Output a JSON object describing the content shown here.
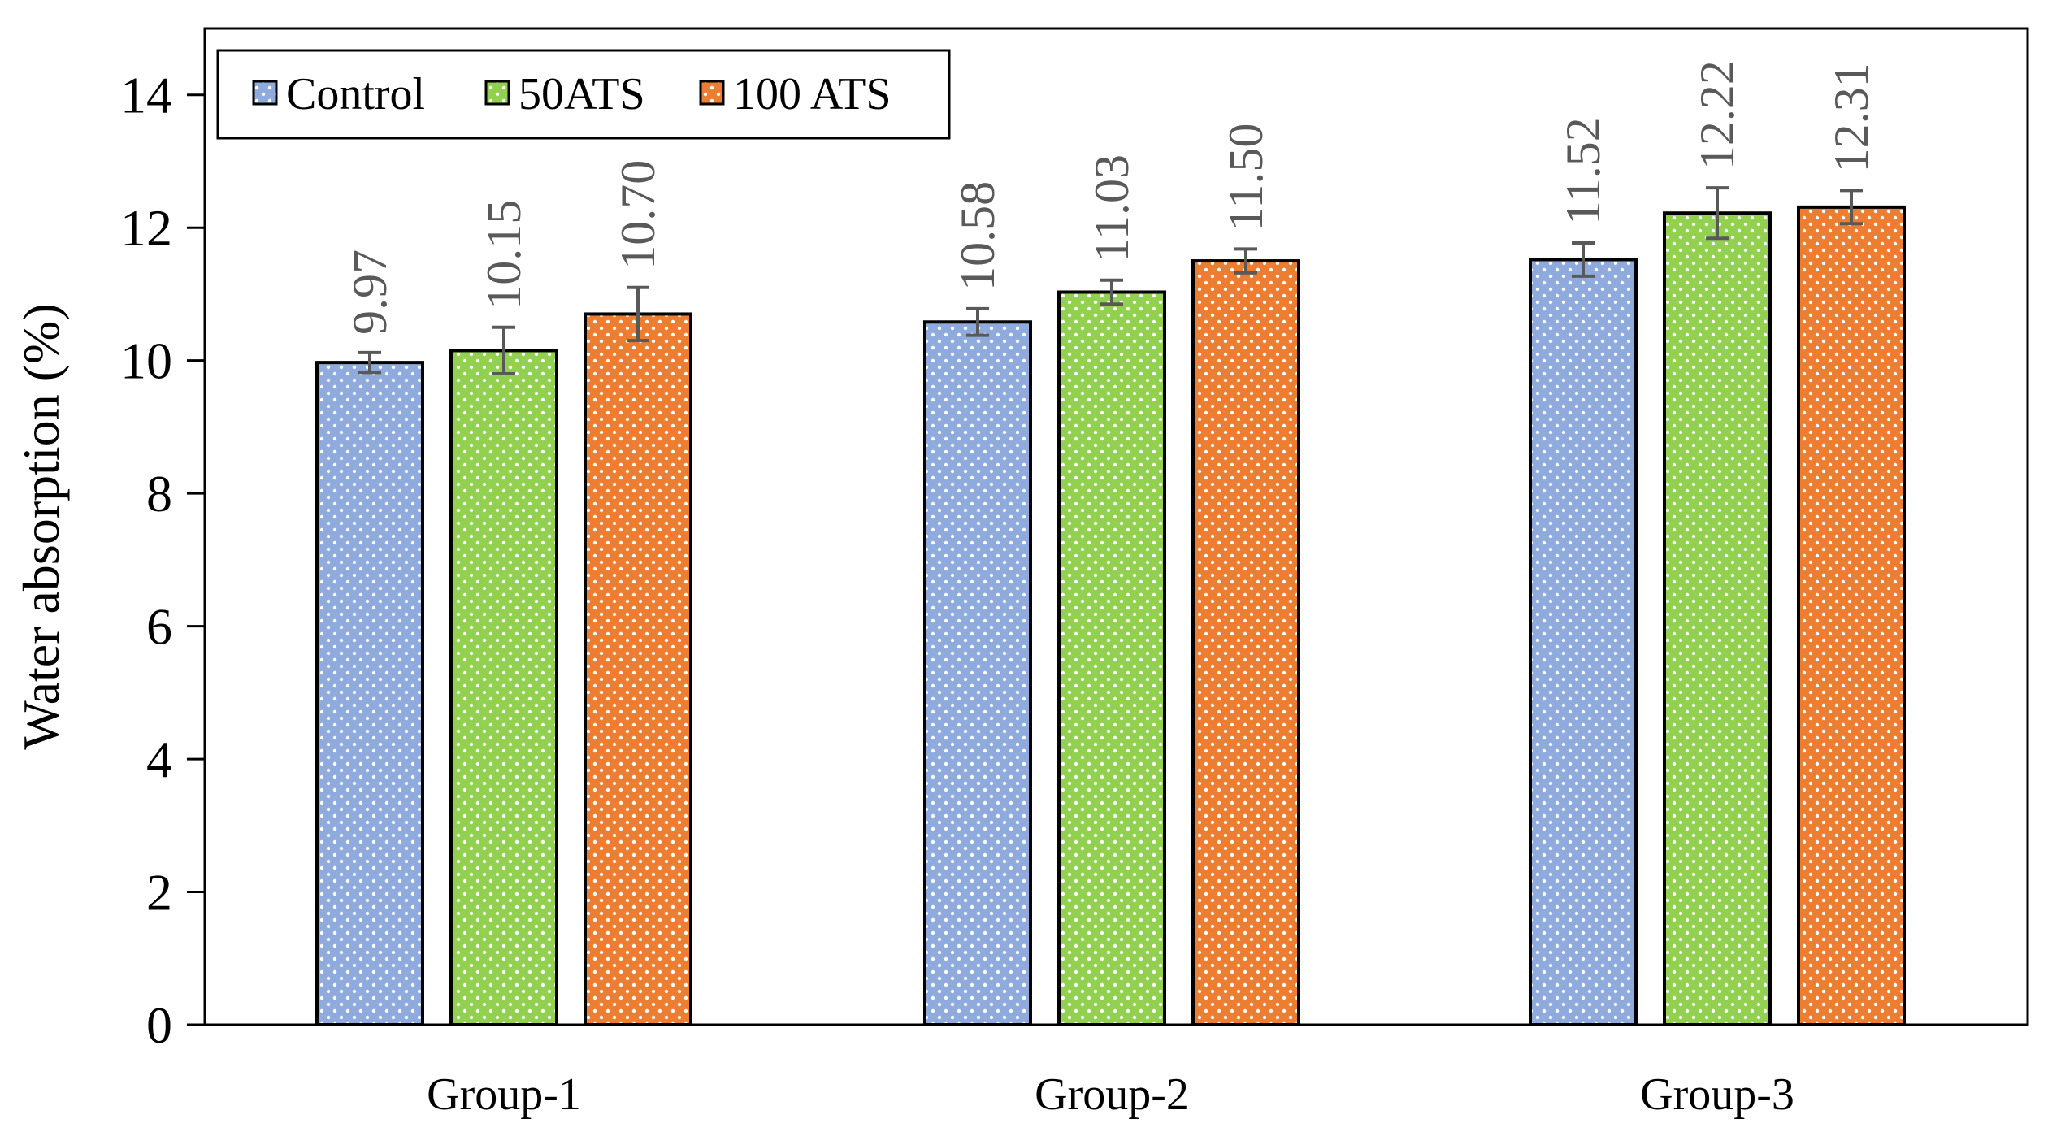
{
  "chart_data": {
    "type": "bar",
    "categories": [
      "Group-1",
      "Group-2",
      "Group-3"
    ],
    "series": [
      {
        "name": "Control",
        "values": [
          9.97,
          10.58,
          11.52
        ],
        "errors": [
          0.15,
          0.2,
          0.25
        ],
        "labels": [
          "9.97",
          "10.58",
          "11.52"
        ],
        "color": "#8FAADC"
      },
      {
        "name": "50ATS",
        "values": [
          10.15,
          11.03,
          12.22
        ],
        "errors": [
          0.35,
          0.18,
          0.38
        ],
        "labels": [
          "10.15",
          "11.03",
          "12.22"
        ],
        "color": "#92D050"
      },
      {
        "name": "100 ATS",
        "values": [
          10.7,
          11.5,
          12.31
        ],
        "errors": [
          0.4,
          0.18,
          0.25
        ],
        "labels": [
          "10.70",
          "11.50",
          "12.31"
        ],
        "color": "#ED7D31"
      }
    ],
    "xlabel": "",
    "ylabel": "Water absorption (%)",
    "ylim": [
      0,
      15
    ],
    "yticks": [
      0,
      2,
      4,
      6,
      8,
      10,
      12,
      14
    ],
    "legend_position": "top-left",
    "grid": false,
    "pattern": "dotted"
  }
}
